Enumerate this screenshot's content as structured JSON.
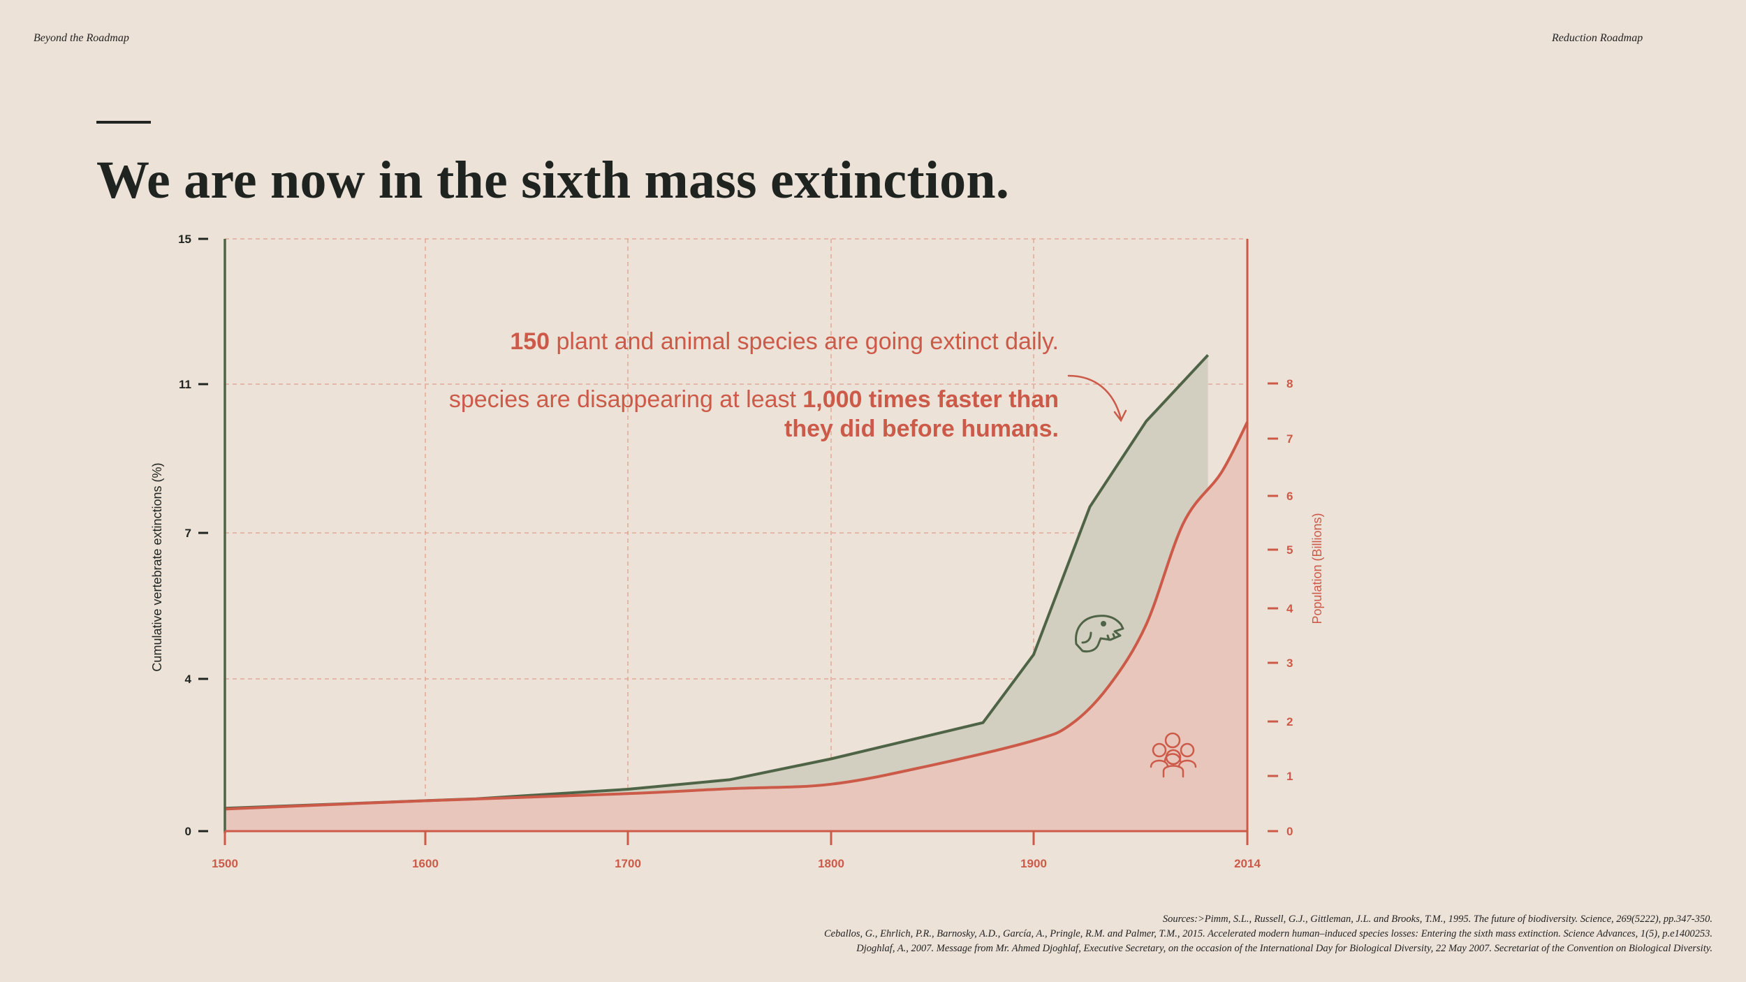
{
  "header": {
    "left": "Beyond the Roadmap",
    "right": "Reduction Roadmap"
  },
  "title": "We are now in the sixth mass extinction.",
  "colors": {
    "background": "#ece2d8",
    "extinction_line": "#4f6446",
    "extinction_fill": "#d3cfc0",
    "population_line": "#cc5a48",
    "population_fill": "#e8c6bb",
    "grid": "#e0a08a",
    "text": "#1f2420"
  },
  "annotations": {
    "line1_bold": "150",
    "line1_rest": " plant and animal species are going extinct daily.",
    "line2_plain": "species are disappearing at least ",
    "line2_bold": "1,000 times faster than",
    "line3_bold": "they did before humans."
  },
  "icons": {
    "dinosaur": "dinosaur-icon",
    "people": "people-group-icon",
    "arrow": "curved-arrow-icon"
  },
  "chart_data": {
    "type": "area",
    "x_ticks": [
      "1500",
      "1600",
      "1700",
      "1800",
      "1900",
      "2014"
    ],
    "x_range": [
      1500,
      2014
    ],
    "y_left": {
      "label": "Cumulative vertebrate extinctions (%)",
      "ticks": [
        "0",
        "4",
        "7",
        "11",
        "15"
      ],
      "range": [
        0,
        15
      ]
    },
    "y_right": {
      "label": "Population (Billions)",
      "ticks": [
        "0",
        "1",
        "2",
        "3",
        "4",
        "5",
        "6",
        "7",
        "8"
      ]
    },
    "grid": true,
    "series": [
      {
        "axis": "left",
        "color": "#4f6446",
        "points": [
          [
            1500,
            0.6
          ],
          [
            1600,
            0.8
          ],
          [
            1625,
            0.85
          ],
          [
            1700,
            1.1
          ],
          [
            1750,
            1.35
          ],
          [
            1800,
            1.9
          ],
          [
            1875,
            2.85
          ],
          [
            1900,
            4.5
          ],
          [
            1930,
            7.7
          ],
          [
            1960,
            10.0
          ],
          [
            1993,
            11.8
          ]
        ]
      },
      {
        "axis": "right",
        "color": "#cc5a48",
        "points": [
          [
            1500,
            0.4
          ],
          [
            1600,
            0.55
          ],
          [
            1700,
            0.68
          ],
          [
            1750,
            0.77
          ],
          [
            1800,
            0.85
          ],
          [
            1850,
            1.2
          ],
          [
            1900,
            1.65
          ],
          [
            1920,
            1.95
          ],
          [
            1940,
            2.6
          ],
          [
            1960,
            3.7
          ],
          [
            1980,
            5.5
          ],
          [
            2000,
            6.4
          ],
          [
            2014,
            7.3
          ]
        ]
      }
    ]
  },
  "sources": [
    "Sources:>Pimm, S.L., Russell, G.J., Gittleman, J.L. and Brooks, T.M., 1995. The future of biodiversity. Science, 269(5222), pp.347-350.",
    "Ceballos, G., Ehrlich, P.R., Barnosky, A.D., García, A., Pringle, R.M. and Palmer, T.M., 2015. Accelerated modern human–induced species losses: Entering the sixth mass extinction. Science Advances, 1(5), p.e1400253.",
    "Djoghlaf, A., 2007. Message from Mr. Ahmed Djoghlaf, Executive Secretary, on the occasion of the International Day for Biological Diversity, 22 May 2007. Secretariat of the Convention on Biological Diversity."
  ]
}
